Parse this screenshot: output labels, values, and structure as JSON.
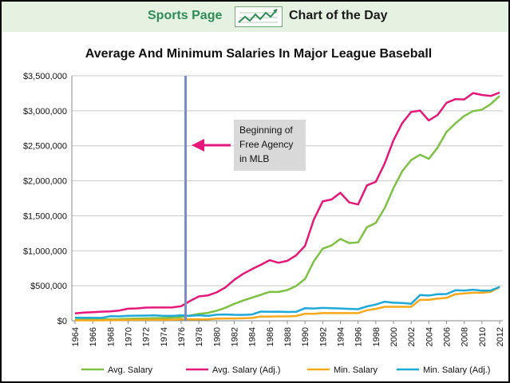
{
  "banner": {
    "left_label": "Sports Page",
    "right_label": "Chart of the Day",
    "logo_icon": "trend-arrow-icon",
    "background": "#e6f2e1",
    "accent": "#2e8b57"
  },
  "chart_data": {
    "type": "line",
    "title": "Average And Minimum Salaries In Major League Baseball",
    "xlabel": "",
    "ylabel": "",
    "xlim": [
      1964,
      2012
    ],
    "ylim": [
      0,
      3500000
    ],
    "yticks": [
      0,
      500000,
      1000000,
      1500000,
      2000000,
      2500000,
      3000000,
      3500000
    ],
    "ytick_labels": [
      "$0",
      "$500,000",
      "$1,000,000",
      "$1,500,000",
      "$2,000,000",
      "$2,500,000",
      "$3,000,000",
      "$3,500,000"
    ],
    "xtick_labels": [
      "1964",
      "1966",
      "1968",
      "1970",
      "1972",
      "1974",
      "1976",
      "1978",
      "1980",
      "1982",
      "1984",
      "1986",
      "1988",
      "1990",
      "1992",
      "1994",
      "1996",
      "1998",
      "2000",
      "2002",
      "2004",
      "2006",
      "2008",
      "2010",
      "2012"
    ],
    "grid": true,
    "legend_position": "bottom",
    "x": [
      1964,
      1965,
      1966,
      1967,
      1968,
      1969,
      1970,
      1971,
      1972,
      1973,
      1974,
      1975,
      1976,
      1977,
      1978,
      1979,
      1980,
      1981,
      1982,
      1983,
      1984,
      1985,
      1986,
      1987,
      1988,
      1989,
      1990,
      1991,
      1992,
      1993,
      1994,
      1995,
      1996,
      1997,
      1998,
      1999,
      2000,
      2001,
      2002,
      2003,
      2004,
      2005,
      2006,
      2007,
      2008,
      2009,
      2010,
      2011,
      2012
    ],
    "series": [
      {
        "name": "Avg. Salary",
        "color": "#7dc242",
        "values": [
          14000,
          16000,
          17000,
          19000,
          20000,
          23000,
          29000,
          31000,
          34000,
          36000,
          40000,
          44000,
          51000,
          74000,
          98000,
          113000,
          143000,
          186000,
          242000,
          289000,
          329000,
          371000,
          413000,
          412000,
          439000,
          497000,
          598000,
          851000,
          1029000,
          1076000,
          1168000,
          1110000,
          1119000,
          1337000,
          1398000,
          1607000,
          1896000,
          2139000,
          2296000,
          2372000,
          2313000,
          2476000,
          2699000,
          2820000,
          2926000,
          2996000,
          3015000,
          3096000,
          3213000
        ]
      },
      {
        "name": "Avg. Salary (Adj.)",
        "color": "#e6177a",
        "values": [
          105000,
          117000,
          123000,
          130000,
          133000,
          146000,
          172000,
          177000,
          188000,
          189000,
          189000,
          191000,
          208000,
          283000,
          348000,
          361000,
          405000,
          477000,
          585000,
          670000,
          738000,
          799000,
          865000,
          829000,
          856000,
          936000,
          1070000,
          1449000,
          1706000,
          1733000,
          1829000,
          1691000,
          1662000,
          1935000,
          1985000,
          2245000,
          2579000,
          2826000,
          2984000,
          3003000,
          2861000,
          2941000,
          3115000,
          3166000,
          3163000,
          3254000,
          3226000,
          3211000,
          3261000
        ]
      },
      {
        "name": "Min. Salary",
        "color": "#f7a81b",
        "values": [
          6000,
          6000,
          6000,
          6000,
          10000,
          10000,
          12000,
          12750,
          13500,
          15000,
          15000,
          16000,
          19000,
          19000,
          21000,
          21000,
          30000,
          32500,
          33500,
          35000,
          40000,
          60000,
          60000,
          62500,
          62500,
          68000,
          100000,
          100000,
          109000,
          109000,
          109000,
          109000,
          109000,
          150000,
          170000,
          200000,
          200000,
          200000,
          200000,
          300000,
          300000,
          316000,
          327000,
          380000,
          390000,
          400000,
          400000,
          414000,
          480000
        ]
      },
      {
        "name": "Min. Salary (Adj.)",
        "color": "#1fa9d8",
        "values": [
          44000,
          43000,
          42000,
          41000,
          65000,
          63000,
          71000,
          73000,
          74000,
          78000,
          70000,
          69000,
          77000,
          72000,
          79000,
          70000,
          87000,
          90000,
          85000,
          84000,
          90000,
          131000,
          128000,
          130000,
          125000,
          128000,
          180000,
          175000,
          183000,
          180000,
          175000,
          170000,
          165000,
          205000,
          231000,
          272000,
          258000,
          254000,
          243000,
          367000,
          360000,
          380000,
          382000,
          435000,
          432000,
          443000,
          431000,
          432000,
          484000
        ]
      }
    ],
    "vline": {
      "x": 1976.5,
      "color": "#7a8cc6"
    },
    "annotation": {
      "lines": [
        "Beginning of",
        "Free Agency",
        "in MLB"
      ],
      "arrow_color": "#e6177a",
      "box_color": "#d9d9d9"
    }
  }
}
